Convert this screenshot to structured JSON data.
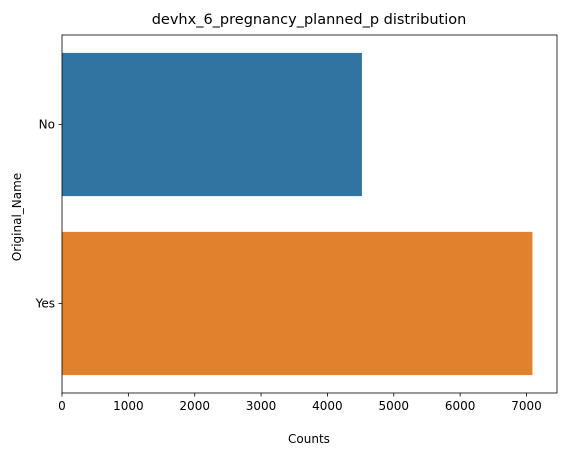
{
  "chart_data": {
    "type": "bar",
    "orientation": "horizontal",
    "title": "devhx_6_pregnancy_planned_p distribution",
    "xlabel": "Counts",
    "ylabel": "Original_Name",
    "categories": [
      "No",
      "Yes"
    ],
    "values": [
      4520,
      7090
    ],
    "colors": [
      "#3274a1",
      "#e1812c"
    ],
    "xlim": [
      0,
      7460
    ],
    "xticks": [
      0,
      1000,
      2000,
      3000,
      4000,
      5000,
      6000,
      7000
    ],
    "grid": false
  }
}
